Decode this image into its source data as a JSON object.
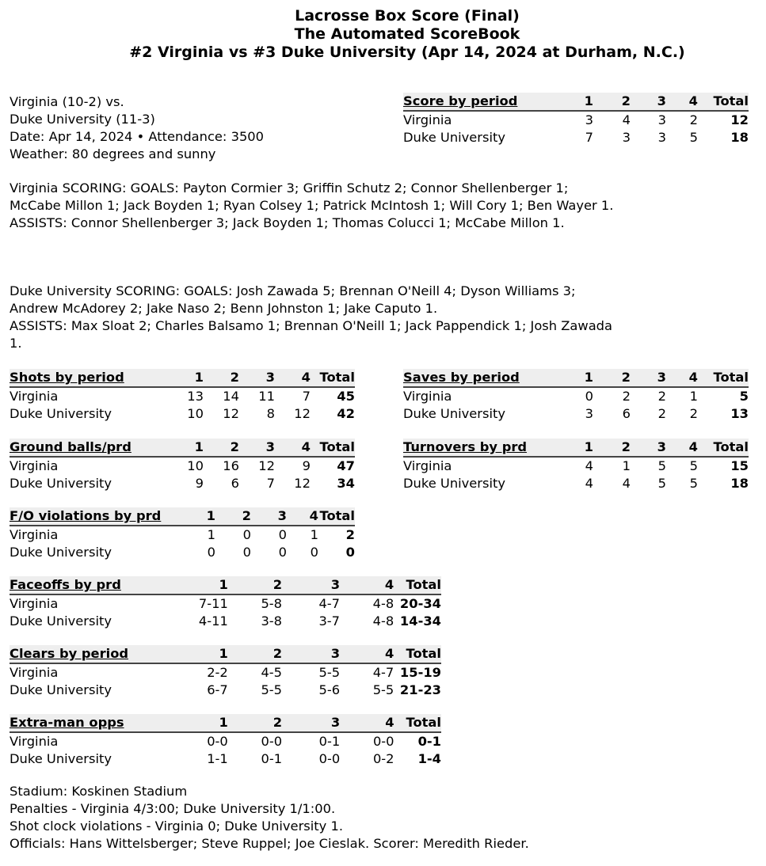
{
  "header": {
    "line1": "Lacrosse Box Score (Final)",
    "line2": "The Automated ScoreBook",
    "line3": "#2 Virginia vs #3 Duke University (Apr 14, 2024 at Durham, N.C.)"
  },
  "info": [
    "Virginia (10-2) vs.",
    "Duke University (11-3)",
    "Date: Apr 14, 2024 • Attendance: 3500",
    "Weather: 80 degrees and sunny"
  ],
  "scoring": {
    "virginia_goals": "Virginia SCORING: GOALS: Payton Cormier 3; Griffin Schutz 2; Connor Shellenberger 1; McCabe Millon 1; Jack Boyden 1; Ryan Colsey 1; Patrick McIntosh 1; Will Cory 1; Ben Wayer 1.",
    "virginia_assists": "ASSISTS: Connor Shellenberger 3; Jack Boyden 1; Thomas Colucci 1; McCabe Millon 1.",
    "duke_goals": "Duke University SCORING: GOALS: Josh Zawada 5; Brennan O'Neill 4; Dyson Williams 3; Andrew McAdorey 2; Jake Naso 2; Benn Johnston 1; Jake Caputo 1.",
    "duke_assists": "ASSISTS: Max Sloat 2; Charles Balsamo 1; Brennan O'Neill 1; Jack Pappendick 1; Josh Zawada 1."
  },
  "tables": [
    {
      "id": "score",
      "title": "Score by period",
      "cols": [
        "1",
        "2",
        "3",
        "4",
        "Total"
      ],
      "rows": [
        [
          "Virginia",
          "3",
          "4",
          "3",
          "2",
          "12"
        ],
        [
          "Duke University",
          "7",
          "3",
          "3",
          "5",
          "18"
        ]
      ]
    },
    {
      "id": "shots",
      "title": "Shots by period",
      "cols": [
        "1",
        "2",
        "3",
        "4",
        "Total"
      ],
      "rows": [
        [
          "Virginia",
          "13",
          "14",
          "11",
          "7",
          "45"
        ],
        [
          "Duke University",
          "10",
          "12",
          "8",
          "12",
          "42"
        ]
      ]
    },
    {
      "id": "saves",
      "title": "Saves by period",
      "cols": [
        "1",
        "2",
        "3",
        "4",
        "Total"
      ],
      "rows": [
        [
          "Virginia",
          "0",
          "2",
          "2",
          "1",
          "5"
        ],
        [
          "Duke University",
          "3",
          "6",
          "2",
          "2",
          "13"
        ]
      ]
    },
    {
      "id": "groundballs",
      "title": "Ground balls/prd",
      "cols": [
        "1",
        "2",
        "3",
        "4",
        "Total"
      ],
      "rows": [
        [
          "Virginia",
          "10",
          "16",
          "12",
          "9",
          "47"
        ],
        [
          "Duke University",
          "9",
          "6",
          "7",
          "12",
          "34"
        ]
      ]
    },
    {
      "id": "turnovers",
      "title": "Turnovers by prd",
      "cols": [
        "1",
        "2",
        "3",
        "4",
        "Total"
      ],
      "rows": [
        [
          "Virginia",
          "4",
          "1",
          "5",
          "5",
          "15"
        ],
        [
          "Duke University",
          "4",
          "4",
          "5",
          "5",
          "18"
        ]
      ]
    },
    {
      "id": "fo-violations",
      "title": "F/O violations by prd",
      "cols": [
        "1",
        "2",
        "3",
        "4",
        "Total"
      ],
      "rows": [
        [
          "Virginia",
          "1",
          "0",
          "0",
          "1",
          "2"
        ],
        [
          "Duke University",
          "0",
          "0",
          "0",
          "0",
          "0"
        ]
      ]
    },
    {
      "id": "faceoffs",
      "title": "Faceoffs by prd",
      "cols": [
        "1",
        "2",
        "3",
        "4",
        "Total"
      ],
      "rows": [
        [
          "Virginia",
          "7-11",
          "5-8",
          "4-7",
          "4-8",
          "20-34"
        ],
        [
          "Duke University",
          "4-11",
          "3-8",
          "3-7",
          "4-8",
          "14-34"
        ]
      ]
    },
    {
      "id": "clears",
      "title": "Clears by period",
      "cols": [
        "1",
        "2",
        "3",
        "4",
        "Total"
      ],
      "rows": [
        [
          "Virginia",
          "2-2",
          "4-5",
          "5-5",
          "4-7",
          "15-19"
        ],
        [
          "Duke University",
          "6-7",
          "5-5",
          "5-6",
          "5-5",
          "21-23"
        ]
      ]
    },
    {
      "id": "extra-man",
      "title": "Extra-man opps",
      "cols": [
        "1",
        "2",
        "3",
        "4",
        "Total"
      ],
      "rows": [
        [
          "Virginia",
          "0-0",
          "0-0",
          "0-1",
          "0-0",
          "0-1"
        ],
        [
          "Duke University",
          "1-1",
          "0-1",
          "0-0",
          "0-2",
          "1-4"
        ]
      ]
    }
  ],
  "footer": [
    "Stadium: Koskinen Stadium",
    "Penalties - Virginia 4/3:00; Duke University 1/1:00.",
    "Shot clock violations - Virginia 0; Duke University 1.",
    "Officials: Hans Wittelsberger; Steve Ruppel; Joe Cieslak. Scorer: Meredith Rieder."
  ]
}
